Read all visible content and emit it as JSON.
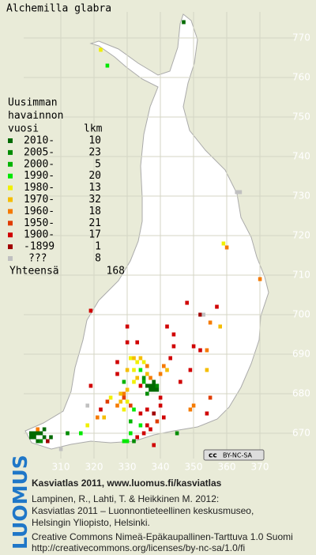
{
  "map": {
    "title": "Alchemilla glabra",
    "legend_title": [
      "Uusimman",
      "havainnon",
      "vuosi"
    ],
    "count_header": "lkm",
    "legend": [
      {
        "label": "2010-",
        "count": 10,
        "color": "#006a00"
      },
      {
        "label": "2005-",
        "count": 23,
        "color": "#008c00"
      },
      {
        "label": "2000-",
        "count": 5,
        "color": "#00b400"
      },
      {
        "label": "1990-",
        "count": 20,
        "color": "#00e800"
      },
      {
        "label": "1980-",
        "count": 13,
        "color": "#f0f000"
      },
      {
        "label": "1970-",
        "count": 32,
        "color": "#f5bd00"
      },
      {
        "label": "1960-",
        "count": 18,
        "color": "#f57a00"
      },
      {
        "label": "1950-",
        "count": 21,
        "color": "#e03c00"
      },
      {
        "label": "1900-",
        "count": 17,
        "color": "#d00000"
      },
      {
        "label": "-1899",
        "count": 1,
        "color": "#a00000"
      },
      {
        "label": "???",
        "count": 8,
        "color": "#c0c0c0"
      }
    ],
    "total_label": "Yhteensä",
    "total": 168,
    "xticks": [
      310,
      320,
      330,
      340,
      350,
      360,
      370
    ],
    "yticks": [
      670,
      680,
      690,
      700,
      710,
      720,
      730,
      740,
      750,
      760,
      770
    ],
    "license_badge": [
      "cc",
      "BY-NC-SA"
    ],
    "squares": [
      [
        347,
        774,
        0
      ],
      [
        322,
        767,
        4
      ],
      [
        324,
        763,
        3
      ],
      [
        363,
        731,
        10
      ],
      [
        364,
        731,
        10
      ],
      [
        359,
        718,
        4
      ],
      [
        360,
        717,
        6
      ],
      [
        370,
        709,
        6
      ],
      [
        348,
        703,
        8
      ],
      [
        319,
        701,
        8
      ],
      [
        330,
        697,
        8
      ],
      [
        352,
        700,
        9
      ],
      [
        353,
        700,
        10
      ],
      [
        357,
        702,
        8
      ],
      [
        355,
        698,
        6
      ],
      [
        358,
        697,
        5
      ],
      [
        342,
        697,
        8
      ],
      [
        344,
        695,
        8
      ],
      [
        330,
        693,
        8
      ],
      [
        333,
        693,
        8
      ],
      [
        344,
        692,
        8
      ],
      [
        350,
        692,
        8
      ],
      [
        352,
        691,
        8
      ],
      [
        354,
        691,
        6
      ],
      [
        349,
        686,
        8
      ],
      [
        354,
        686,
        5
      ],
      [
        343,
        689,
        8
      ],
      [
        341,
        687,
        6
      ],
      [
        327,
        688,
        8
      ],
      [
        327,
        685,
        8
      ],
      [
        319,
        682,
        8
      ],
      [
        318,
        677,
        10
      ],
      [
        331,
        689,
        4
      ],
      [
        332,
        689,
        5
      ],
      [
        333,
        688,
        4
      ],
      [
        334,
        689,
        5
      ],
      [
        335,
        688,
        4
      ],
      [
        336,
        687,
        6
      ],
      [
        330,
        686,
        5
      ],
      [
        332,
        686,
        4
      ],
      [
        334,
        686,
        3
      ],
      [
        336,
        685,
        5
      ],
      [
        333,
        684,
        5
      ],
      [
        335,
        684,
        1
      ],
      [
        337,
        684,
        6
      ],
      [
        338,
        683,
        0
      ],
      [
        336,
        682,
        0
      ],
      [
        337,
        682,
        0
      ],
      [
        338,
        682,
        0
      ],
      [
        339,
        682,
        1
      ],
      [
        337,
        681,
        0
      ],
      [
        338,
        681,
        0
      ],
      [
        339,
        681,
        0
      ],
      [
        336,
        680,
        1
      ],
      [
        334,
        682,
        8
      ],
      [
        332,
        683,
        4
      ],
      [
        330,
        681,
        5
      ],
      [
        329,
        680,
        6
      ],
      [
        328,
        680,
        5
      ],
      [
        329,
        679,
        7
      ],
      [
        328,
        678,
        5
      ],
      [
        330,
        678,
        4
      ],
      [
        331,
        677,
        7
      ],
      [
        327,
        677,
        6
      ],
      [
        329,
        676,
        4
      ],
      [
        332,
        676,
        3
      ],
      [
        334,
        675,
        8
      ],
      [
        336,
        676,
        8
      ],
      [
        340,
        679,
        8
      ],
      [
        340,
        677,
        8
      ],
      [
        338,
        675,
        9
      ],
      [
        339,
        673,
        7
      ],
      [
        341,
        674,
        8
      ],
      [
        336,
        672,
        8
      ],
      [
        334,
        672,
        3
      ],
      [
        337,
        671,
        8
      ],
      [
        335,
        670,
        8
      ],
      [
        333,
        669,
        8
      ],
      [
        331,
        670,
        3
      ],
      [
        329,
        668,
        3
      ],
      [
        330,
        668,
        3
      ],
      [
        332,
        668,
        1
      ],
      [
        338,
        667,
        8
      ],
      [
        345,
        670,
        1
      ],
      [
        349,
        676,
        6
      ],
      [
        350,
        677,
        6
      ],
      [
        354,
        675,
        8
      ],
      [
        355,
        679,
        7
      ],
      [
        346,
        683,
        8
      ],
      [
        340,
        685,
        6
      ],
      [
        342,
        686,
        5
      ],
      [
        335,
        683,
        2
      ],
      [
        329,
        683,
        2
      ],
      [
        331,
        673,
        2
      ],
      [
        301,
        670,
        0
      ],
      [
        302,
        670,
        0
      ],
      [
        303,
        670,
        0
      ],
      [
        304,
        670,
        0
      ],
      [
        305,
        669,
        0
      ],
      [
        301,
        669,
        0
      ],
      [
        302,
        669,
        0
      ],
      [
        303,
        668,
        0
      ],
      [
        304,
        668,
        1
      ],
      [
        305,
        671,
        0
      ],
      [
        303,
        671,
        6
      ],
      [
        306,
        668,
        9
      ],
      [
        307,
        669,
        0
      ],
      [
        310,
        666,
        10
      ],
      [
        312,
        670,
        1
      ],
      [
        316,
        670,
        3
      ],
      [
        318,
        672,
        4
      ],
      [
        321,
        674,
        6
      ],
      [
        323,
        674,
        5
      ],
      [
        322,
        676,
        8
      ],
      [
        324,
        678,
        7
      ],
      [
        325,
        679,
        4
      ]
    ]
  },
  "footer": {
    "logo": "LUOMUS",
    "lines": [
      "Kasviatlas 2011, www.luomus.fi/kasviatlas",
      "Lampinen, R., Lahti, T. & Heikkinen M. 2012:",
      "Kasviatlas 2011 – Luonnontieteellinen keskusmuseo,",
      "Helsingin Yliopisto, Helsinki.",
      "Creative Commons Nimeä-Epäkaupallinen-Tarttuva 1.0 Suomi",
      "http://creativecommons.org/licenses/by-nc-sa/1.0/fi"
    ]
  }
}
